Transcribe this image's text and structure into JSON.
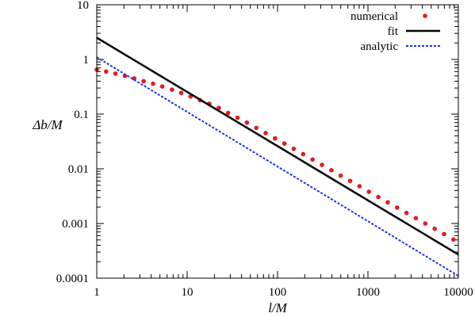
{
  "chart_data": {
    "type": "line",
    "title": "",
    "xlabel": "l/M",
    "ylabel": "Δb/M",
    "xscale": "log",
    "yscale": "log",
    "xlim": [
      1,
      10000
    ],
    "ylim": [
      0.0001,
      10
    ],
    "grid": false,
    "legend_position": "top-right",
    "x_ticks": [
      "1",
      "10",
      "100",
      "1000",
      "10000"
    ],
    "y_ticks": [
      "0.0001",
      "0.001",
      "0.01",
      "0.1",
      "1",
      "10"
    ],
    "series": [
      {
        "name": "numerical",
        "style": "points",
        "color": "#e41a1c",
        "x": [
          1,
          1.27,
          1.61,
          2.05,
          2.6,
          3.3,
          4.2,
          5.3,
          6.8,
          8.6,
          10.9,
          13.9,
          17.6,
          22.4,
          28.4,
          36.1,
          45.8,
          58.2,
          73.9,
          93.9,
          119,
          151,
          192,
          244,
          310,
          394,
          500,
          635,
          807,
          1025,
          1302,
          1654,
          2101,
          2669,
          3391,
          4307,
          5471,
          6950,
          8829
        ],
        "y": [
          0.65,
          0.6,
          0.55,
          0.5,
          0.45,
          0.4,
          0.36,
          0.32,
          0.28,
          0.245,
          0.21,
          0.18,
          0.155,
          0.13,
          0.105,
          0.086,
          0.07,
          0.056,
          0.045,
          0.036,
          0.029,
          0.0232,
          0.0185,
          0.0148,
          0.0118,
          0.0094,
          0.0075,
          0.006,
          0.0048,
          0.0038,
          0.00305,
          0.00244,
          0.00195,
          0.00156,
          0.00125,
          0.001,
          0.0008,
          0.00064,
          0.00051
        ]
      },
      {
        "name": "fit",
        "style": "solid",
        "color": "#000000",
        "x": [
          1,
          10000
        ],
        "y": [
          2.5,
          0.00027
        ]
      },
      {
        "name": "analytic",
        "style": "dashed",
        "color": "#1f2fe0",
        "x": [
          1,
          10000
        ],
        "y": [
          1.1,
          0.00011
        ]
      }
    ]
  }
}
